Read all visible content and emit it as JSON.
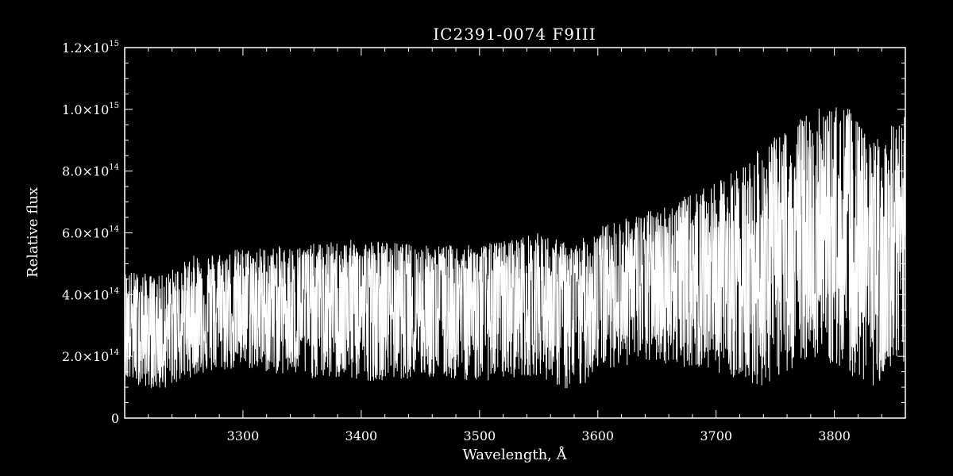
{
  "chart_data": {
    "type": "line",
    "title": "IC2391-0074   F9III",
    "xlabel": "Wavelength, Å",
    "ylabel": "Relative flux",
    "xlim": [
      3200,
      3860
    ],
    "ylim": [
      0,
      1200000000000000.0
    ],
    "x_ticks": [
      {
        "value": 3300,
        "label": "3300"
      },
      {
        "value": 3400,
        "label": "3400"
      },
      {
        "value": 3500,
        "label": "3500"
      },
      {
        "value": 3600,
        "label": "3600"
      },
      {
        "value": 3700,
        "label": "3700"
      },
      {
        "value": 3800,
        "label": "3800"
      }
    ],
    "y_ticks": [
      {
        "value": 0,
        "mantissa": "0",
        "exponent": ""
      },
      {
        "value": 200000000000000.0,
        "mantissa": "2.0×10",
        "exponent": "14"
      },
      {
        "value": 400000000000000.0,
        "mantissa": "4.0×10",
        "exponent": "14"
      },
      {
        "value": 600000000000000.0,
        "mantissa": "6.0×10",
        "exponent": "14"
      },
      {
        "value": 800000000000000.0,
        "mantissa": "8.0×10",
        "exponent": "14"
      },
      {
        "value": 1000000000000000.0,
        "mantissa": "1.0×10",
        "exponent": "15"
      },
      {
        "value": 1200000000000000.0,
        "mantissa": "1.2×10",
        "exponent": "15"
      }
    ],
    "grid": false,
    "series": [
      {
        "color": "#ffffff",
        "envelope": [
          {
            "x": 3200,
            "low": 120000000000000.0,
            "mid": 300000000000000.0,
            "high": 480000000000000.0
          },
          {
            "x": 3230,
            "low": 90000000000000.0,
            "mid": 280000000000000.0,
            "high": 460000000000000.0
          },
          {
            "x": 3260,
            "low": 140000000000000.0,
            "mid": 350000000000000.0,
            "high": 530000000000000.0
          },
          {
            "x": 3300,
            "low": 160000000000000.0,
            "mid": 370000000000000.0,
            "high": 550000000000000.0
          },
          {
            "x": 3350,
            "low": 130000000000000.0,
            "mid": 380000000000000.0,
            "high": 560000000000000.0
          },
          {
            "x": 3400,
            "low": 120000000000000.0,
            "mid": 390000000000000.0,
            "high": 580000000000000.0
          },
          {
            "x": 3450,
            "low": 130000000000000.0,
            "mid": 400000000000000.0,
            "high": 560000000000000.0
          },
          {
            "x": 3500,
            "low": 120000000000000.0,
            "mid": 400000000000000.0,
            "high": 560000000000000.0
          },
          {
            "x": 3550,
            "low": 140000000000000.0,
            "mid": 410000000000000.0,
            "high": 600000000000000.0
          },
          {
            "x": 3580,
            "low": 70000000000000.0,
            "mid": 380000000000000.0,
            "high": 560000000000000.0
          },
          {
            "x": 3600,
            "low": 160000000000000.0,
            "mid": 440000000000000.0,
            "high": 620000000000000.0
          },
          {
            "x": 3650,
            "low": 180000000000000.0,
            "mid": 460000000000000.0,
            "high": 680000000000000.0
          },
          {
            "x": 3700,
            "low": 150000000000000.0,
            "mid": 480000000000000.0,
            "high": 760000000000000.0
          },
          {
            "x": 3740,
            "low": 100000000000000.0,
            "mid": 500000000000000.0,
            "high": 880000000000000.0
          },
          {
            "x": 3780,
            "low": 200000000000000.0,
            "mid": 550000000000000.0,
            "high": 1000000000000000.0
          },
          {
            "x": 3810,
            "low": 150000000000000.0,
            "mid": 560000000000000.0,
            "high": 1020000000000000.0
          },
          {
            "x": 3830,
            "low": 100000000000000.0,
            "mid": 480000000000000.0,
            "high": 900000000000000.0
          },
          {
            "x": 3860,
            "low": 150000000000000.0,
            "mid": 500000000000000.0,
            "high": 980000000000000.0
          }
        ]
      }
    ]
  }
}
